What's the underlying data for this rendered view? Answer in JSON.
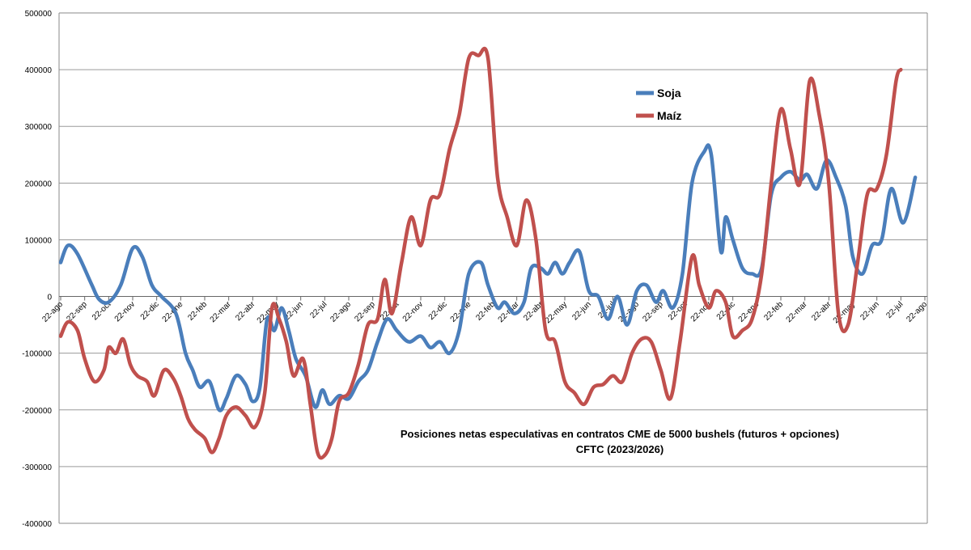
{
  "chart_data": {
    "type": "line",
    "title": "Posiciones netas especulativas en contratos CME de 5000 bushels (futuros + opciones)",
    "subtitle": "CFTC (2023/2026)",
    "ylim": [
      -400000,
      500000
    ],
    "yticks": [
      -400000,
      -300000,
      -200000,
      -100000,
      0,
      100000,
      200000,
      300000,
      400000,
      500000
    ],
    "grid": true,
    "legend_position": "top-center",
    "categories": [
      "22-ago",
      "22-sep",
      "22-oct",
      "22-nov",
      "22-dic",
      "22-ene",
      "22-feb",
      "22-mar",
      "22-abr",
      "22-may",
      "22-jun",
      "22-jul",
      "22-ago",
      "22-sep",
      "22-oct",
      "22-nov",
      "22-dic",
      "22-ene",
      "22-feb",
      "22-mar",
      "22-abr",
      "22-may",
      "22-jun",
      "22-jul",
      "22-ago",
      "22-sep",
      "22-oct",
      "22-nov",
      "22-dic",
      "22-ene",
      "22-feb",
      "22-mar",
      "22-abr",
      "22-may",
      "22-jun",
      "22-jul",
      "22-ago"
    ],
    "series": [
      {
        "name": "Soja",
        "color": "#4a7ebb",
        "points": [
          [
            0,
            60000
          ],
          [
            0.3,
            90000
          ],
          [
            0.7,
            75000
          ],
          [
            1.3,
            20000
          ],
          [
            1.6,
            -5000
          ],
          [
            2,
            -10000
          ],
          [
            2.5,
            20000
          ],
          [
            3,
            85000
          ],
          [
            3.4,
            70000
          ],
          [
            3.8,
            20000
          ],
          [
            4.2,
            0
          ],
          [
            4.8,
            -30000
          ],
          [
            5.2,
            -100000
          ],
          [
            5.5,
            -130000
          ],
          [
            5.8,
            -160000
          ],
          [
            6.2,
            -150000
          ],
          [
            6.6,
            -200000
          ],
          [
            6.9,
            -180000
          ],
          [
            7.3,
            -140000
          ],
          [
            7.7,
            -155000
          ],
          [
            8,
            -185000
          ],
          [
            8.3,
            -160000
          ],
          [
            8.6,
            -40000
          ],
          [
            8.9,
            -60000
          ],
          [
            9.2,
            -20000
          ],
          [
            9.5,
            -60000
          ],
          [
            9.8,
            -110000
          ],
          [
            10.2,
            -140000
          ],
          [
            10.6,
            -195000
          ],
          [
            10.9,
            -165000
          ],
          [
            11.2,
            -190000
          ],
          [
            11.6,
            -175000
          ],
          [
            12,
            -180000
          ],
          [
            12.4,
            -150000
          ],
          [
            12.8,
            -130000
          ],
          [
            13.2,
            -80000
          ],
          [
            13.6,
            -40000
          ],
          [
            14,
            -60000
          ],
          [
            14.5,
            -80000
          ],
          [
            15,
            -70000
          ],
          [
            15.4,
            -90000
          ],
          [
            15.8,
            -80000
          ],
          [
            16.2,
            -100000
          ],
          [
            16.6,
            -60000
          ],
          [
            17,
            40000
          ],
          [
            17.5,
            60000
          ],
          [
            17.8,
            20000
          ],
          [
            18.2,
            -20000
          ],
          [
            18.5,
            -10000
          ],
          [
            18.9,
            -30000
          ],
          [
            19.3,
            -10000
          ],
          [
            19.6,
            50000
          ],
          [
            20,
            50000
          ],
          [
            20.3,
            40000
          ],
          [
            20.6,
            60000
          ],
          [
            20.9,
            40000
          ],
          [
            21.2,
            60000
          ],
          [
            21.6,
            80000
          ],
          [
            22,
            10000
          ],
          [
            22.4,
            0
          ],
          [
            22.8,
            -40000
          ],
          [
            23.2,
            0
          ],
          [
            23.6,
            -50000
          ],
          [
            24,
            10000
          ],
          [
            24.4,
            20000
          ],
          [
            24.8,
            -10000
          ],
          [
            25.1,
            10000
          ],
          [
            25.5,
            -20000
          ],
          [
            25.9,
            40000
          ],
          [
            26.3,
            200000
          ],
          [
            26.8,
            255000
          ],
          [
            27.1,
            250000
          ],
          [
            27.5,
            80000
          ],
          [
            27.7,
            140000
          ],
          [
            28,
            100000
          ],
          [
            28.4,
            50000
          ],
          [
            28.8,
            40000
          ],
          [
            29.2,
            50000
          ],
          [
            29.6,
            180000
          ],
          [
            30,
            210000
          ],
          [
            30.4,
            220000
          ],
          [
            30.8,
            205000
          ],
          [
            31.1,
            215000
          ],
          [
            31.5,
            190000
          ],
          [
            31.9,
            240000
          ],
          [
            32.3,
            210000
          ],
          [
            32.7,
            160000
          ],
          [
            33,
            70000
          ],
          [
            33.4,
            40000
          ],
          [
            33.8,
            90000
          ],
          [
            34.2,
            100000
          ],
          [
            34.6,
            190000
          ],
          [
            35.1,
            130000
          ],
          [
            35.6,
            210000
          ]
        ]
      },
      {
        "name": "Maíz",
        "color": "#c0504d",
        "points": [
          [
            0,
            -70000
          ],
          [
            0.3,
            -45000
          ],
          [
            0.7,
            -60000
          ],
          [
            1,
            -110000
          ],
          [
            1.4,
            -150000
          ],
          [
            1.8,
            -130000
          ],
          [
            2,
            -90000
          ],
          [
            2.3,
            -100000
          ],
          [
            2.6,
            -75000
          ],
          [
            2.9,
            -120000
          ],
          [
            3.2,
            -140000
          ],
          [
            3.6,
            -150000
          ],
          [
            3.9,
            -175000
          ],
          [
            4.3,
            -130000
          ],
          [
            4.7,
            -145000
          ],
          [
            5,
            -175000
          ],
          [
            5.3,
            -215000
          ],
          [
            5.6,
            -235000
          ],
          [
            6,
            -250000
          ],
          [
            6.3,
            -275000
          ],
          [
            6.6,
            -250000
          ],
          [
            6.9,
            -210000
          ],
          [
            7.3,
            -195000
          ],
          [
            7.7,
            -210000
          ],
          [
            8.1,
            -230000
          ],
          [
            8.5,
            -170000
          ],
          [
            8.8,
            -20000
          ],
          [
            9.1,
            -40000
          ],
          [
            9.4,
            -80000
          ],
          [
            9.7,
            -140000
          ],
          [
            10.1,
            -110000
          ],
          [
            10.4,
            -190000
          ],
          [
            10.7,
            -275000
          ],
          [
            11,
            -280000
          ],
          [
            11.3,
            -250000
          ],
          [
            11.6,
            -185000
          ],
          [
            12,
            -170000
          ],
          [
            12.4,
            -120000
          ],
          [
            12.8,
            -50000
          ],
          [
            13.2,
            -40000
          ],
          [
            13.5,
            30000
          ],
          [
            13.8,
            -30000
          ],
          [
            14.2,
            60000
          ],
          [
            14.6,
            140000
          ],
          [
            15,
            90000
          ],
          [
            15.4,
            170000
          ],
          [
            15.8,
            180000
          ],
          [
            16.2,
            260000
          ],
          [
            16.6,
            320000
          ],
          [
            17,
            420000
          ],
          [
            17.4,
            425000
          ],
          [
            17.8,
            420000
          ],
          [
            18.2,
            210000
          ],
          [
            18.6,
            140000
          ],
          [
            19,
            90000
          ],
          [
            19.4,
            170000
          ],
          [
            19.8,
            100000
          ],
          [
            20.2,
            -60000
          ],
          [
            20.6,
            -80000
          ],
          [
            21,
            -150000
          ],
          [
            21.4,
            -170000
          ],
          [
            21.8,
            -190000
          ],
          [
            22.2,
            -160000
          ],
          [
            22.6,
            -155000
          ],
          [
            23,
            -140000
          ],
          [
            23.4,
            -150000
          ],
          [
            23.8,
            -100000
          ],
          [
            24.2,
            -75000
          ],
          [
            24.6,
            -80000
          ],
          [
            25,
            -130000
          ],
          [
            25.4,
            -180000
          ],
          [
            25.8,
            -80000
          ],
          [
            26.3,
            70000
          ],
          [
            26.6,
            20000
          ],
          [
            27,
            -20000
          ],
          [
            27.3,
            10000
          ],
          [
            27.7,
            -10000
          ],
          [
            28,
            -70000
          ],
          [
            28.4,
            -60000
          ],
          [
            28.8,
            -40000
          ],
          [
            29.2,
            40000
          ],
          [
            29.6,
            200000
          ],
          [
            30,
            330000
          ],
          [
            30.4,
            260000
          ],
          [
            30.8,
            200000
          ],
          [
            31.2,
            380000
          ],
          [
            31.6,
            320000
          ],
          [
            32,
            200000
          ],
          [
            32.4,
            -30000
          ],
          [
            32.8,
            -50000
          ],
          [
            33.2,
            60000
          ],
          [
            33.6,
            180000
          ],
          [
            34,
            190000
          ],
          [
            34.4,
            250000
          ],
          [
            34.8,
            380000
          ],
          [
            35,
            400000
          ]
        ]
      }
    ]
  }
}
